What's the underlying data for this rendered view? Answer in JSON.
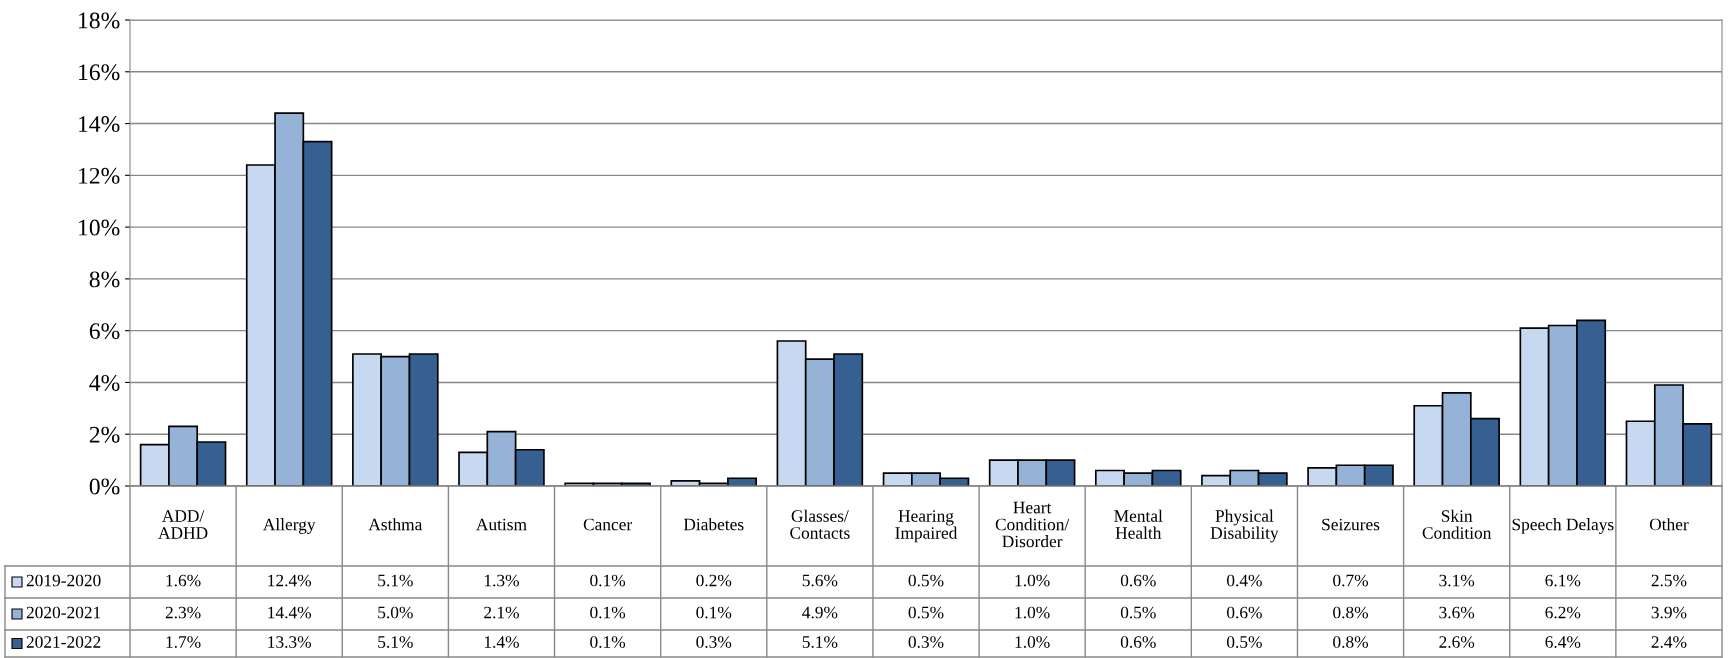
{
  "chart_data": {
    "type": "bar",
    "categories": [
      "ADD/\nADHD",
      "Allergy",
      "Asthma",
      "Autism",
      "Cancer",
      "Diabetes",
      "Glasses/\nContacts",
      "Hearing\nImpaired",
      "Heart\nCondition/\nDisorder",
      "Mental\nHealth",
      "Physical\nDisability",
      "Seizures",
      "Skin\nCondition",
      "Speech Delays",
      "Other"
    ],
    "series": [
      {
        "name": "2019-2020",
        "color": "#c6d9f1",
        "values": [
          1.6,
          12.4,
          5.1,
          1.3,
          0.1,
          0.2,
          5.6,
          0.5,
          1.0,
          0.6,
          0.4,
          0.7,
          3.1,
          6.1,
          2.5
        ],
        "value_labels": [
          "1.6%",
          "12.4%",
          "5.1%",
          "1.3%",
          "0.1%",
          "0.2%",
          "5.6%",
          "0.5%",
          "1.0%",
          "0.6%",
          "0.4%",
          "0.7%",
          "3.1%",
          "6.1%",
          "2.5%"
        ]
      },
      {
        "name": "2020-2021",
        "color": "#95b3d7",
        "values": [
          2.3,
          14.4,
          5.0,
          2.1,
          0.1,
          0.1,
          4.9,
          0.5,
          1.0,
          0.5,
          0.6,
          0.8,
          3.6,
          6.2,
          3.9
        ],
        "value_labels": [
          "2.3%",
          "14.4%",
          "5.0%",
          "2.1%",
          "0.1%",
          "0.1%",
          "4.9%",
          "0.5%",
          "1.0%",
          "0.5%",
          "0.6%",
          "0.8%",
          "3.6%",
          "6.2%",
          "3.9%"
        ]
      },
      {
        "name": "2021-2022",
        "color": "#366092",
        "values": [
          1.7,
          13.3,
          5.1,
          1.4,
          0.1,
          0.3,
          5.1,
          0.3,
          1.0,
          0.6,
          0.5,
          0.8,
          2.6,
          6.4,
          2.4
        ],
        "value_labels": [
          "1.7%",
          "13.3%",
          "5.1%",
          "1.4%",
          "0.1%",
          "0.3%",
          "5.1%",
          "0.3%",
          "1.0%",
          "0.6%",
          "0.5%",
          "0.8%",
          "2.6%",
          "6.4%",
          "2.4%"
        ]
      }
    ],
    "ylim": [
      0,
      18
    ],
    "yticks": [
      {
        "value": 0,
        "label": "0%"
      },
      {
        "value": 2,
        "label": "2%"
      },
      {
        "value": 4,
        "label": "4%"
      },
      {
        "value": 6,
        "label": "6%"
      },
      {
        "value": 8,
        "label": "8%"
      },
      {
        "value": 10,
        "label": "10%"
      },
      {
        "value": 12,
        "label": "12%"
      },
      {
        "value": 14,
        "label": "14%"
      },
      {
        "value": 16,
        "label": "16%"
      },
      {
        "value": 18,
        "label": "18%"
      }
    ],
    "grid": "y",
    "legend": "bottom left"
  }
}
